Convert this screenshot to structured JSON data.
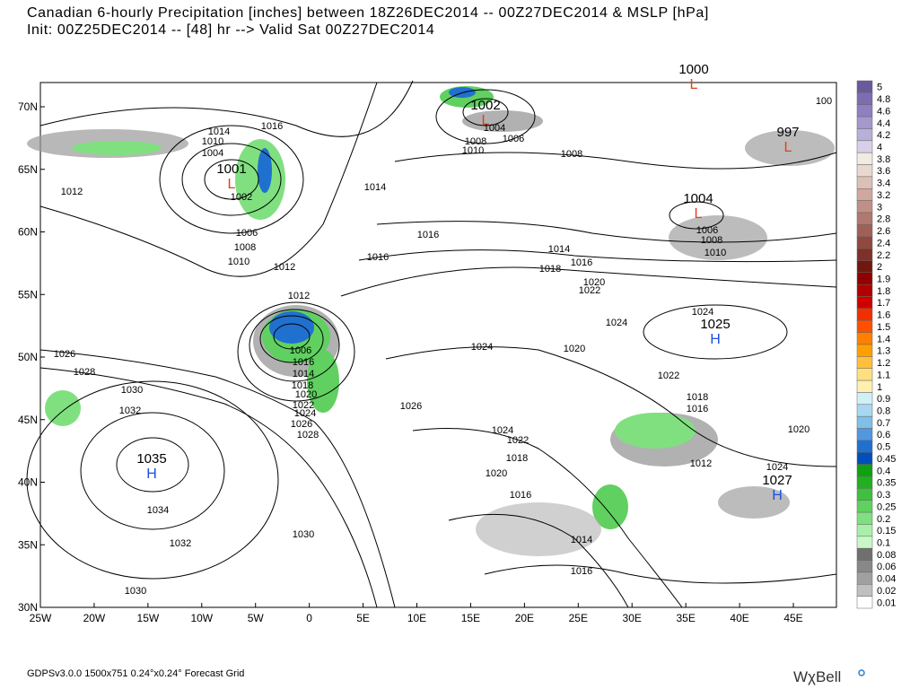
{
  "header": {
    "title_line1": "Canadian 6-hourly Precipitation [inches] between 18Z26DEC2014 -- 00Z27DEC2014 & MSLP [hPa]",
    "title_line2": "Init: 00Z25DEC2014 -- [48] hr --> Valid Sat 00Z27DEC2014"
  },
  "map": {
    "lon_labels": [
      "25W",
      "20W",
      "15W",
      "10W",
      "5W",
      "0",
      "5E",
      "10E",
      "15E",
      "20E",
      "25E",
      "30E",
      "35E",
      "40E",
      "45E"
    ],
    "lat_labels": [
      "70N",
      "65N",
      "60N",
      "55N",
      "50N",
      "45N",
      "40N",
      "35N",
      "30N"
    ],
    "pressure_centers": [
      {
        "value": "1001",
        "symbol": "L"
      },
      {
        "value": "1002",
        "symbol": "L"
      },
      {
        "value": "1000",
        "symbol": "L"
      },
      {
        "value": "997",
        "symbol": "L"
      },
      {
        "value": "1004",
        "symbol": "L"
      },
      {
        "value": "1025",
        "symbol": "H"
      },
      {
        "value": "1035",
        "symbol": "H"
      },
      {
        "value": "1027",
        "symbol": "H"
      }
    ],
    "isobar_labels": [
      "1014",
      "1016",
      "1010",
      "1004",
      "1012",
      "1002",
      "1006",
      "1008",
      "1010",
      "1012",
      "1012",
      "1014",
      "1016",
      "1016",
      "1004",
      "1006",
      "1008",
      "1010",
      "1008",
      "1014",
      "1018",
      "1016",
      "1020",
      "1022",
      "1024",
      "1024",
      "1006",
      "1008",
      "1010",
      "1006",
      "1016",
      "1014",
      "1018",
      "1020",
      "1022",
      "1024",
      "1026",
      "1028",
      "1026",
      "1028",
      "1030",
      "1032",
      "1034",
      "1032",
      "1030",
      "1030",
      "1024",
      "1022",
      "1020",
      "1018",
      "1016",
      "1014",
      "1016",
      "1012",
      "1018",
      "1016",
      "1020",
      "1022",
      "1020",
      "1024",
      "1026",
      "1024",
      "100"
    ]
  },
  "colorbar": {
    "levels": [
      {
        "label": "5",
        "color": "#6a5a9c"
      },
      {
        "label": "4.8",
        "color": "#7d6db0"
      },
      {
        "label": "4.6",
        "color": "#9080c0"
      },
      {
        "label": "4.4",
        "color": "#a498cc"
      },
      {
        "label": "4.2",
        "color": "#b8b0d8"
      },
      {
        "label": "4",
        "color": "#d8d0e8"
      },
      {
        "label": "3.8",
        "color": "#f2ebe4"
      },
      {
        "label": "3.6",
        "color": "#e8d8d0"
      },
      {
        "label": "3.4",
        "color": "#dcc0b8"
      },
      {
        "label": "3.2",
        "color": "#d0a8a0"
      },
      {
        "label": "3",
        "color": "#c09088"
      },
      {
        "label": "2.8",
        "color": "#b07870"
      },
      {
        "label": "2.6",
        "color": "#a06058"
      },
      {
        "label": "2.4",
        "color": "#904840"
      },
      {
        "label": "2.2",
        "color": "#803028"
      },
      {
        "label": "2",
        "color": "#701810"
      },
      {
        "label": "1.9",
        "color": "#900000"
      },
      {
        "label": "1.8",
        "color": "#b00000"
      },
      {
        "label": "1.7",
        "color": "#d00000"
      },
      {
        "label": "1.6",
        "color": "#f03000"
      },
      {
        "label": "1.5",
        "color": "#ff5000"
      },
      {
        "label": "1.4",
        "color": "#ff8000"
      },
      {
        "label": "1.3",
        "color": "#ffa000"
      },
      {
        "label": "1.2",
        "color": "#ffc040"
      },
      {
        "label": "1.1",
        "color": "#ffe080"
      },
      {
        "label": "1",
        "color": "#fff0b0"
      },
      {
        "label": "0.9",
        "color": "#d0f0f8"
      },
      {
        "label": "0.8",
        "color": "#a8d8f0"
      },
      {
        "label": "0.7",
        "color": "#80c0e8"
      },
      {
        "label": "0.6",
        "color": "#5098e0"
      },
      {
        "label": "0.5",
        "color": "#2070d0"
      },
      {
        "label": "0.45",
        "color": "#0050b8"
      },
      {
        "label": "0.4",
        "color": "#10a010"
      },
      {
        "label": "0.35",
        "color": "#20b020"
      },
      {
        "label": "0.3",
        "color": "#40c040"
      },
      {
        "label": "0.25",
        "color": "#60d060"
      },
      {
        "label": "0.2",
        "color": "#80e080"
      },
      {
        "label": "0.15",
        "color": "#a8f0a8"
      },
      {
        "label": "0.1",
        "color": "#c8f8c8"
      },
      {
        "label": "0.08",
        "color": "#707070"
      },
      {
        "label": "0.06",
        "color": "#888888"
      },
      {
        "label": "0.04",
        "color": "#a0a0a0"
      },
      {
        "label": "0.02",
        "color": "#c0c0c0"
      },
      {
        "label": "0.01",
        "color": "#ffffff"
      }
    ]
  },
  "footer": {
    "grid_info": "GDPSv3.0.0 1500x751 0.24°x0.24° Forecast Grid",
    "brand": "WχBell"
  }
}
